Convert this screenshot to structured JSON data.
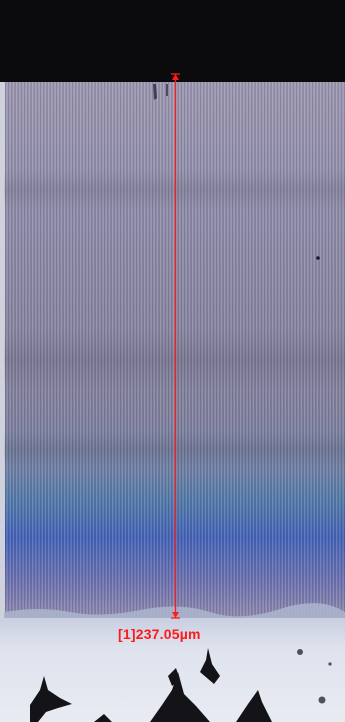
{
  "measurement": {
    "label": "[1]237.05µm",
    "index": 1,
    "value": 237.05,
    "unit": "µm",
    "color": "#ff1a1a"
  },
  "image": {
    "top_band_color": "#0b0b0d",
    "grating_color": "#8e87a6",
    "grating_blue_color": "#3c53b6",
    "substrate_color": "#d7dbe6"
  }
}
